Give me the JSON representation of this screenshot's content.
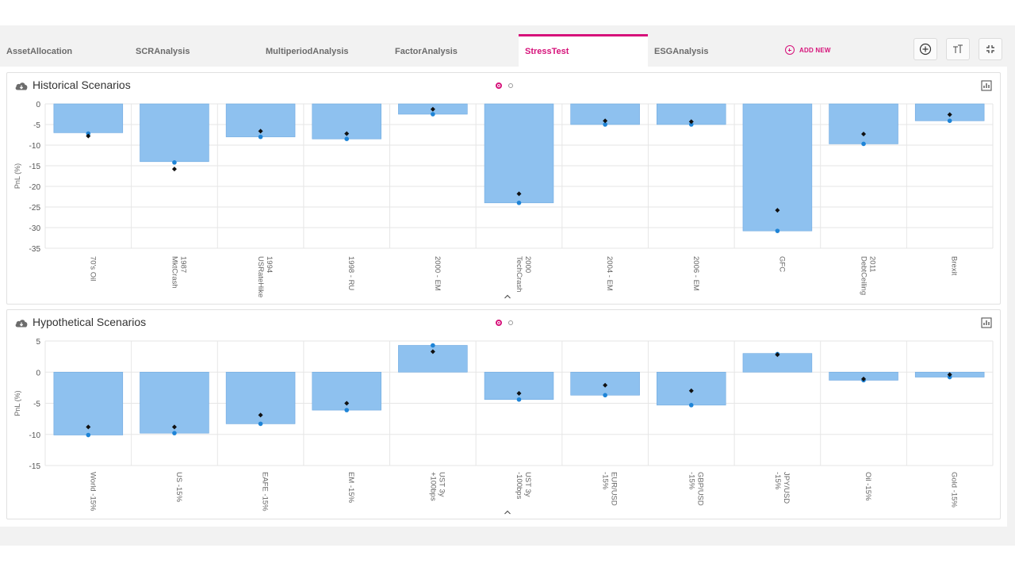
{
  "tabs": [
    {
      "label": "AssetAllocation",
      "active": false
    },
    {
      "label": "SCRAnalysis",
      "active": false
    },
    {
      "label": "MultiperiodAnalysis",
      "active": false
    },
    {
      "label": "FactorAnalysis",
      "active": false
    },
    {
      "label": "StressTest",
      "active": true
    },
    {
      "label": "ESGAnalysis",
      "active": false
    }
  ],
  "add_new_label": "ADD NEW",
  "toolbar_icons": [
    "add-circle-icon",
    "text-size-icon",
    "collapse-arrows-icon"
  ],
  "colors": {
    "accent": "#d6127a",
    "bar": "#8ec1ef",
    "bar_stroke": "#6fa9e0",
    "blue_dot": "#1f84d6",
    "black_dot": "#111111"
  },
  "panels": {
    "historical": {
      "title": "Historical Scenarios"
    },
    "hypothetical": {
      "title": "Hypothetical Scenarios"
    }
  },
  "chart_data": [
    {
      "type": "bar",
      "ylabel": "PnL (%)",
      "ylim": [
        -35,
        0
      ],
      "yticks": [
        0,
        -5,
        -10,
        -15,
        -20,
        -25,
        -30,
        -35
      ],
      "grid": true,
      "categories": [
        [
          "70's Oil"
        ],
        [
          "1987",
          "MktCrash"
        ],
        [
          "1994",
          "USRateHike"
        ],
        [
          "1998 - RU"
        ],
        [
          "2000 - EM"
        ],
        [
          "2000",
          "TechCrash"
        ],
        [
          "2004 - EM"
        ],
        [
          "2006 - EM"
        ],
        [
          "GFC"
        ],
        [
          "2011",
          "DebtCeiling"
        ],
        [
          "Brexit"
        ]
      ],
      "values": [
        -7.0,
        -14.0,
        -8.0,
        -8.5,
        -2.5,
        -24.0,
        -5.0,
        -5.0,
        -30.8,
        -9.7,
        -4.1
      ],
      "blue_markers": [
        -7.2,
        -14.2,
        -8.0,
        -8.5,
        -2.5,
        -24.0,
        -5.0,
        -5.0,
        -30.8,
        -9.7,
        -4.1
      ],
      "black_markers": [
        -7.8,
        -15.8,
        -6.6,
        -7.2,
        -1.3,
        -21.8,
        -4.1,
        -4.3,
        -25.8,
        -7.3,
        -2.6
      ]
    },
    {
      "type": "bar",
      "ylabel": "PnL (%)",
      "ylim": [
        -15,
        5
      ],
      "yticks": [
        5,
        0,
        -5,
        -10,
        -15
      ],
      "grid": true,
      "categories": [
        [
          "World -15%"
        ],
        [
          "US -15%"
        ],
        [
          "EAFE -15%"
        ],
        [
          "EM -15%"
        ],
        [
          "UST 3y",
          "+100bps"
        ],
        [
          "UST 3y",
          "-100bps"
        ],
        [
          "EUR/USD",
          "-15%"
        ],
        [
          "GBP/USD",
          "-15%"
        ],
        [
          "JPY/USD",
          "-15%"
        ],
        [
          "Oil -15%"
        ],
        [
          "Gold -15%"
        ]
      ],
      "values": [
        -10.1,
        -9.8,
        -8.3,
        -6.1,
        4.3,
        -4.4,
        -3.7,
        -5.3,
        3.0,
        -1.3,
        -0.8
      ],
      "blue_markers": [
        -10.1,
        -9.8,
        -8.3,
        -6.1,
        4.3,
        -4.4,
        -3.7,
        -5.3,
        2.9,
        -1.3,
        -0.8
      ],
      "black_markers": [
        -8.8,
        -8.8,
        -6.9,
        -5.0,
        3.3,
        -3.4,
        -2.1,
        -3.0,
        2.8,
        -1.1,
        -0.4
      ]
    }
  ]
}
